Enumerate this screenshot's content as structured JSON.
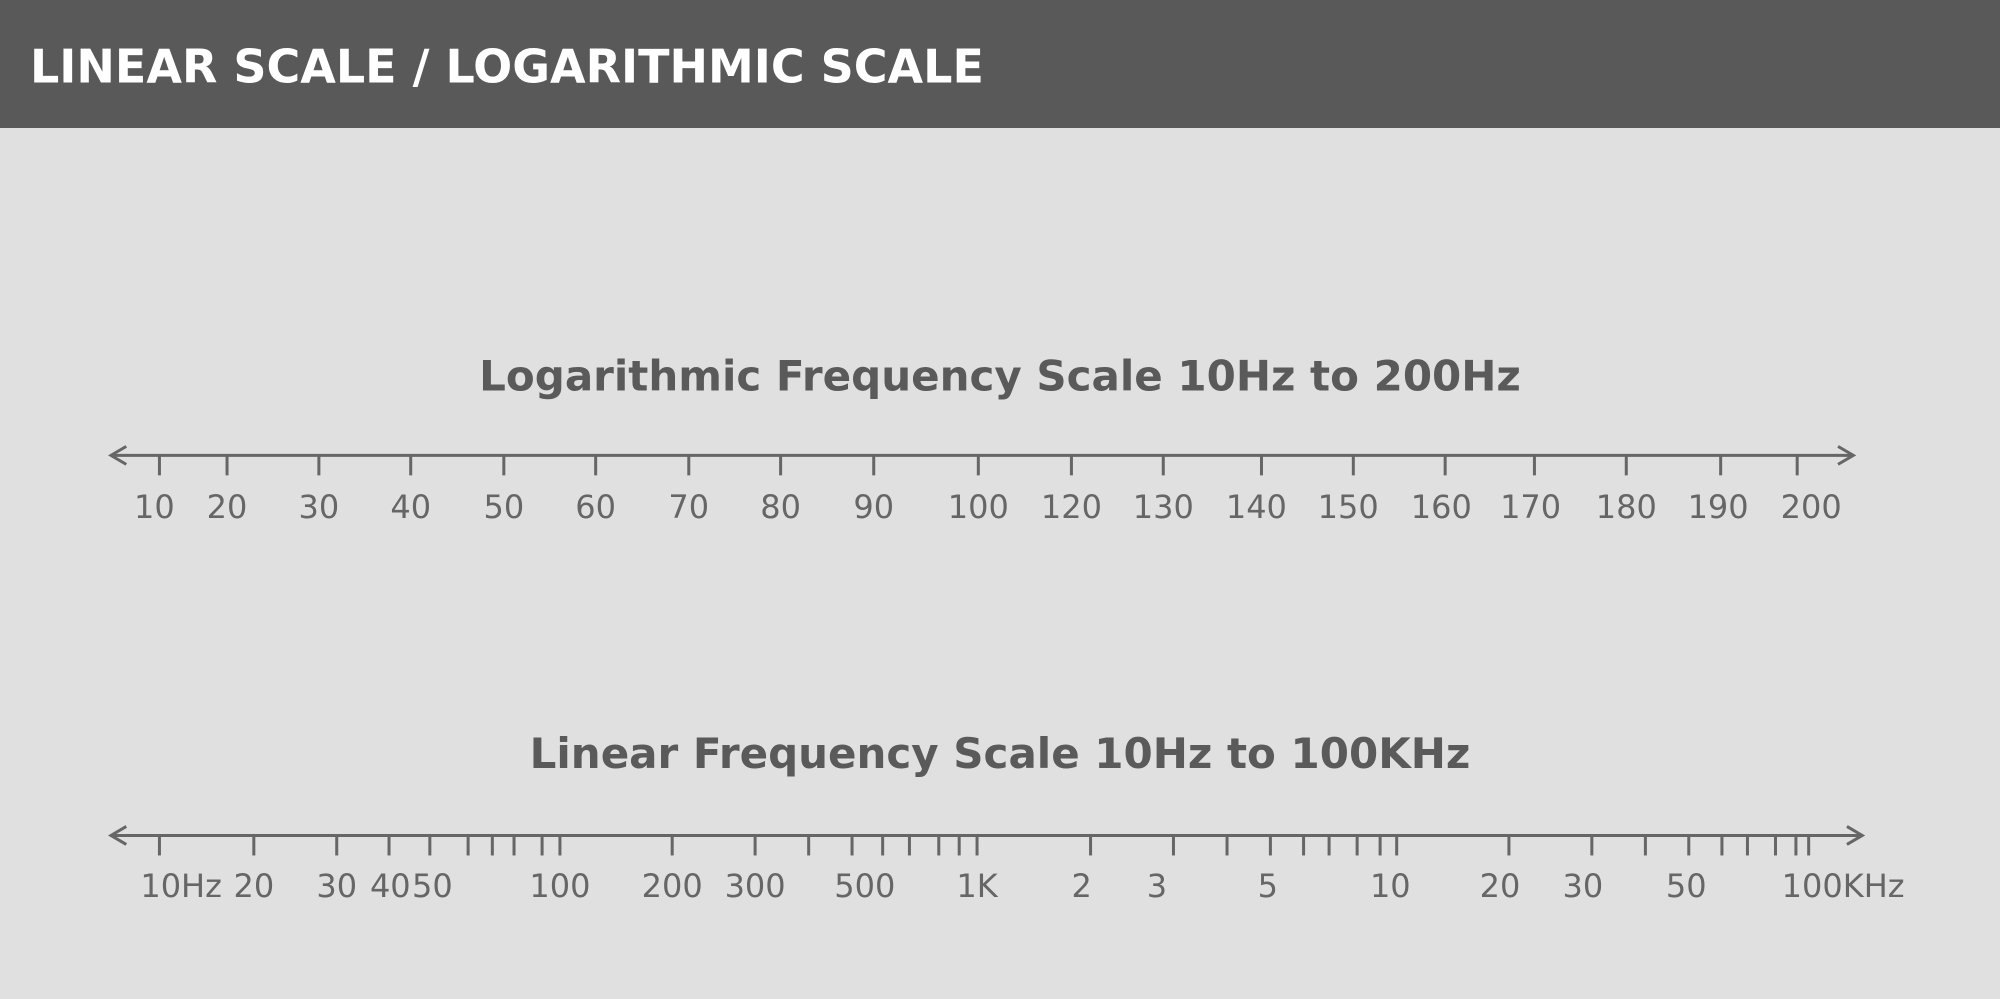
{
  "header": {
    "title": "LINEAR SCALE / LOGARITHMIC SCALE"
  },
  "scales": [
    {
      "title": "Logarithmic Frequency Scale 10Hz to 200Hz",
      "labels": [
        "10",
        "20",
        "30",
        "40",
        "50",
        "60",
        "70",
        "80",
        "90",
        "100",
        "120",
        "130",
        "140",
        "150",
        "160",
        "170",
        "180",
        "190",
        "200"
      ]
    },
    {
      "title": "Linear Frequency Scale 10Hz to 100KHz",
      "labels": [
        "10Hz",
        "20",
        "30",
        "40",
        "50",
        "100",
        "200",
        "300",
        "500",
        "1K",
        "2",
        "3",
        "5",
        "10",
        "20",
        "30",
        "50",
        "100KHz"
      ]
    }
  ]
}
